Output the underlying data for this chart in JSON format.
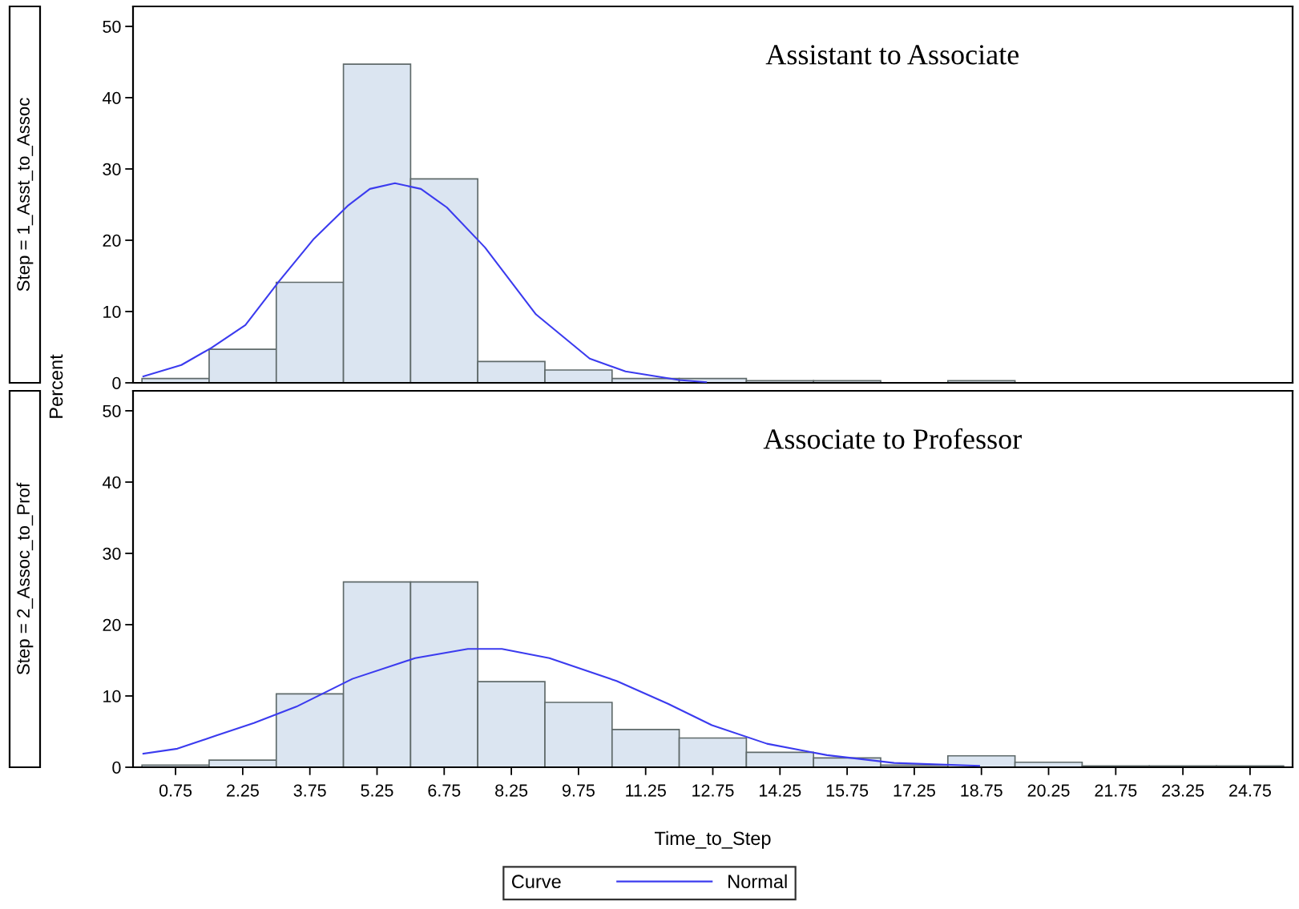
{
  "chart_data": [
    {
      "type": "histogram",
      "subtitle": "Step = 1_Asst_to_Assoc",
      "ylabel": "Percent",
      "annotations": [
        "Assistant to Associate"
      ],
      "tick_labels": "y",
      "color": "#dbe5f1",
      "bins": [
        0,
        1.5,
        3,
        4.5,
        6,
        7.5,
        9,
        10.5,
        12,
        13.5,
        15,
        16.5,
        18,
        19.5,
        21,
        22.5,
        24,
        25.5
      ],
      "values": [
        0.6,
        4.7,
        14.1,
        44.7,
        28.6,
        3.0,
        1.8,
        0.6,
        0.6,
        0.3,
        0.3,
        0,
        0.3,
        0,
        0,
        0,
        0
      ],
      "xlim": [
        -0.2,
        25.7
      ],
      "ylim": [
        0,
        52.8
      ],
      "yticks": [
        0,
        10,
        20,
        30,
        40,
        50
      ],
      "series": [
        {
          "type": "line",
          "name": "Normal",
          "color": "#3b3bef",
          "x": [
            0.03,
            0.88,
            1.55,
            2.31,
            3.07,
            3.84,
            4.61,
            5.09,
            5.65,
            6.23,
            6.81,
            7.66,
            8.8,
            10.0,
            10.8,
            12.0,
            12.6
          ],
          "values": [
            0.9,
            2.5,
            4.9,
            8.1,
            14.3,
            20.2,
            24.9,
            27.2,
            28,
            27.2,
            24.6,
            19,
            9.6,
            3.4,
            1.6,
            0.4,
            0.1
          ]
        }
      ]
    },
    {
      "type": "histogram",
      "subtitle": "Step = 2_Assoc_to_Prof",
      "xlabel": "Time_to_Step",
      "annotations": [
        "Associate to Professor"
      ],
      "legend": "bottom",
      "legend_title": "Curve",
      "color": "#dbe5f1",
      "bins": [
        0,
        1.5,
        3,
        4.5,
        6,
        7.5,
        9,
        10.5,
        12,
        13.5,
        15,
        16.5,
        18,
        19.5,
        21,
        22.5,
        24,
        25.5
      ],
      "values": [
        0.3,
        1.0,
        10.3,
        26.0,
        26.0,
        12.0,
        9.1,
        5.3,
        4.1,
        2.1,
        1.3,
        0.3,
        1.6,
        0.7,
        0.2,
        0.2,
        0.2
      ],
      "xlim": [
        -0.2,
        25.7
      ],
      "ylim": [
        0,
        52.8
      ],
      "yticks": [
        0,
        10,
        20,
        30,
        40,
        50
      ],
      "xticks": [
        0.75,
        2.25,
        3.75,
        5.25,
        6.75,
        8.25,
        9.75,
        11.25,
        12.75,
        14.25,
        15.75,
        17.25,
        18.75,
        20.25,
        21.75,
        23.25,
        24.75
      ],
      "series": [
        {
          "type": "line",
          "name": "Normal",
          "color": "#3b3bef",
          "x": [
            0.03,
            0.79,
            1.64,
            2.5,
            3.45,
            4.7,
            6.1,
            7.28,
            8.04,
            9.1,
            10.6,
            11.75,
            12.73,
            13.96,
            15.3,
            16.8,
            18.7
          ],
          "values": [
            1.9,
            2.6,
            4.4,
            6.2,
            8.5,
            12.4,
            15.3,
            16.6,
            16.6,
            15.3,
            12.1,
            8.9,
            5.9,
            3.3,
            1.7,
            0.6,
            0.2
          ]
        }
      ]
    }
  ]
}
